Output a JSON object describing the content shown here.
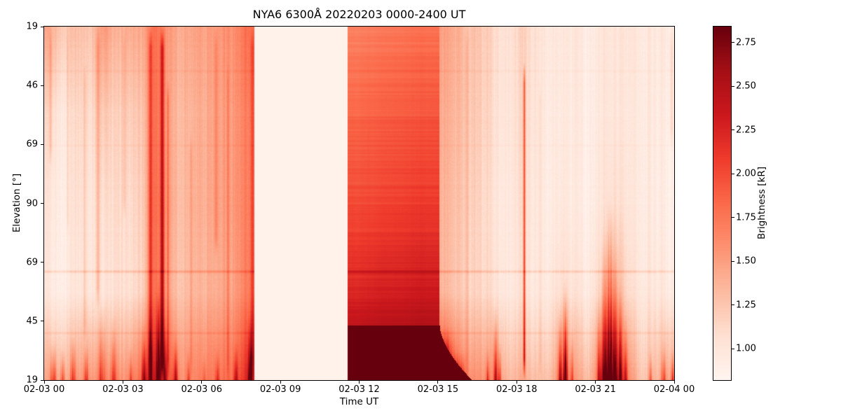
{
  "figure": {
    "background": "#ffffff"
  },
  "chart_data": {
    "type": "heatmap",
    "title": "NYA6 6300Å 20220203 0000-2400 UT",
    "xlabel": "Time UT",
    "ylabel": "Elevation [°]",
    "x_ticks": [
      "02-03 00",
      "02-03 03",
      "02-03 06",
      "02-03 09",
      "02-03 12",
      "02-03 15",
      "02-03 18",
      "02-03 21",
      "02-04 00"
    ],
    "x_range_hours": [
      0,
      24
    ],
    "y_ticks": [
      "19",
      "46",
      "69",
      "90",
      "69",
      "45",
      "19"
    ],
    "grid": false,
    "colorbar": {
      "label": "Brightness [kR]",
      "ticks": [
        "1.00",
        "1.25",
        "1.50",
        "1.75",
        "2.00",
        "2.25",
        "2.50",
        "2.75"
      ],
      "tick_values": [
        1.0,
        1.25,
        1.5,
        1.75,
        2.0,
        2.25,
        2.5,
        2.75
      ],
      "vmin": 0.82,
      "vmax": 2.84,
      "colormap": "Reds",
      "cmap_stops": [
        [
          0,
          [
            255,
            245,
            240
          ]
        ],
        [
          0.125,
          [
            254,
            224,
            210
          ]
        ],
        [
          0.25,
          [
            252,
            187,
            161
          ]
        ],
        [
          0.375,
          [
            252,
            146,
            114
          ]
        ],
        [
          0.5,
          [
            251,
            106,
            74
          ]
        ],
        [
          0.625,
          [
            239,
            59,
            44
          ]
        ],
        [
          0.75,
          [
            203,
            24,
            29
          ]
        ],
        [
          0.875,
          [
            165,
            15,
            21
          ]
        ],
        [
          1,
          [
            103,
            0,
            13
          ]
        ]
      ]
    },
    "segments": {
      "gap": {
        "t0": 8.0,
        "t1": 11.56,
        "value": 0.86
      },
      "block": {
        "t0": 11.56,
        "t1": 15.07,
        "sat_yfrac": 0.845,
        "sat_value": 2.9
      },
      "wedge": {
        "t1": 16.3,
        "y0": 0.845,
        "power": 0.6,
        "value": 2.9
      }
    },
    "profiles": {
      "hours_per_col": 0.5,
      "anchors": [
        0,
        0.25,
        0.5,
        0.75,
        1
      ],
      "values": [
        [
          1.45,
          1.12,
          1.02,
          0.98,
          1.45
        ],
        [
          1.25,
          1.0,
          0.95,
          0.95,
          1.4
        ],
        [
          1.3,
          1.12,
          1.06,
          1.0,
          1.5
        ],
        [
          1.25,
          1.08,
          1.0,
          1.0,
          1.55
        ],
        [
          1.6,
          1.28,
          1.12,
          1.05,
          1.55
        ],
        [
          1.3,
          1.1,
          1.05,
          1.0,
          1.5
        ],
        [
          1.45,
          1.22,
          1.12,
          1.08,
          1.6
        ],
        [
          1.5,
          1.32,
          1.26,
          1.22,
          1.9
        ],
        [
          1.75,
          1.75,
          1.78,
          1.75,
          2.25
        ],
        [
          1.55,
          1.45,
          1.48,
          1.42,
          1.95
        ],
        [
          1.45,
          1.35,
          1.33,
          1.28,
          1.6
        ],
        [
          1.48,
          1.38,
          1.38,
          1.33,
          1.65
        ],
        [
          1.5,
          1.43,
          1.43,
          1.38,
          1.72
        ],
        [
          1.54,
          1.47,
          1.47,
          1.42,
          1.76
        ],
        [
          1.58,
          1.52,
          1.52,
          1.47,
          1.82
        ],
        [
          1.78,
          1.68,
          1.68,
          1.68,
          2.2
        ],
        [
          0.86,
          0.86,
          0.86,
          0.86,
          0.86
        ],
        [
          0.86,
          0.86,
          0.86,
          0.86,
          0.86
        ],
        [
          0.86,
          0.86,
          0.86,
          0.86,
          0.86
        ],
        [
          0.86,
          0.86,
          0.86,
          0.86,
          0.86
        ],
        [
          0.86,
          0.86,
          0.86,
          0.86,
          0.86
        ],
        [
          0.86,
          0.86,
          0.86,
          0.86,
          0.86
        ],
        [
          0.86,
          0.86,
          0.86,
          0.86,
          0.86
        ],
        [
          1.68,
          1.84,
          2.0,
          2.22,
          2.7
        ],
        [
          1.7,
          1.86,
          2.01,
          2.24,
          2.72
        ],
        [
          1.72,
          1.88,
          2.03,
          2.27,
          2.74
        ],
        [
          1.74,
          1.9,
          2.05,
          2.28,
          2.75
        ],
        [
          1.76,
          1.92,
          2.07,
          2.3,
          2.76
        ],
        [
          1.78,
          1.93,
          2.09,
          2.32,
          2.78
        ],
        [
          1.78,
          1.94,
          2.09,
          2.32,
          2.78
        ],
        [
          1.52,
          1.45,
          1.4,
          1.38,
          2.1
        ],
        [
          1.42,
          1.36,
          1.3,
          1.26,
          1.8
        ],
        [
          1.3,
          1.25,
          1.2,
          1.16,
          1.6
        ],
        [
          1.2,
          1.15,
          1.1,
          1.1,
          1.55
        ],
        [
          1.14,
          1.09,
          1.05,
          1.08,
          1.6
        ],
        [
          1.08,
          1.04,
          1.0,
          1.0,
          1.35
        ],
        [
          1.16,
          1.12,
          1.08,
          1.04,
          1.4
        ],
        [
          1.04,
          1.0,
          0.96,
          0.95,
          1.28
        ],
        [
          1.0,
          0.97,
          0.95,
          0.99,
          1.32
        ],
        [
          1.0,
          0.97,
          0.99,
          1.1,
          1.7
        ],
        [
          1.0,
          0.97,
          0.95,
          1.03,
          1.5
        ],
        [
          0.97,
          0.95,
          0.94,
          0.99,
          1.35
        ],
        [
          1.02,
          1.0,
          1.03,
          1.2,
          1.9
        ],
        [
          1.05,
          1.04,
          1.12,
          1.45,
          2.2
        ],
        [
          1.0,
          0.97,
          0.99,
          1.08,
          1.6
        ],
        [
          0.95,
          0.93,
          0.92,
          0.95,
          1.22
        ],
        [
          0.95,
          0.93,
          0.92,
          0.97,
          1.32
        ],
        [
          1.0,
          0.96,
          0.95,
          1.0,
          1.5
        ]
      ]
    },
    "streaks": [
      [
        0.25,
        0.04,
        0.3,
        0.0,
        0.4
      ],
      [
        0.9,
        0.03,
        0.2,
        0.0,
        0.6
      ],
      [
        1.55,
        0.04,
        0.22,
        0.1,
        0.9
      ],
      [
        2.05,
        0.06,
        0.35,
        0.0,
        0.8
      ],
      [
        3.05,
        0.04,
        0.22,
        0.0,
        0.55
      ],
      [
        4.05,
        0.05,
        0.7,
        0.0,
        1.0
      ],
      [
        4.5,
        0.05,
        1.1,
        0.0,
        1.0
      ],
      [
        4.72,
        0.035,
        0.45,
        0.15,
        1.0
      ],
      [
        5.6,
        0.04,
        0.2,
        0.3,
        1.0
      ],
      [
        6.55,
        0.045,
        0.3,
        0.0,
        0.65
      ],
      [
        7.0,
        0.03,
        0.22,
        0.1,
        1.0
      ],
      [
        7.93,
        0.05,
        0.45,
        0.0,
        1.0
      ],
      [
        16.1,
        0.05,
        0.2,
        0.0,
        1.0
      ],
      [
        18.29,
        0.028,
        1.15,
        0.1,
        1.0
      ],
      [
        18.9,
        0.03,
        0.18,
        0.15,
        1.0
      ],
      [
        23.9,
        0.05,
        0.3,
        0.0,
        0.35
      ]
    ],
    "flames": [
      [
        0.35,
        0.08,
        0.8,
        0.12
      ],
      [
        0.7,
        0.06,
        0.6,
        0.1
      ],
      [
        1.1,
        0.07,
        0.7,
        0.14
      ],
      [
        1.6,
        0.06,
        0.7,
        0.12
      ],
      [
        2.2,
        0.1,
        0.7,
        0.25
      ],
      [
        2.65,
        0.08,
        0.6,
        0.2
      ],
      [
        3.3,
        0.05,
        0.5,
        0.1
      ],
      [
        3.8,
        0.06,
        0.9,
        0.18
      ],
      [
        4.05,
        0.05,
        1.1,
        0.22
      ],
      [
        4.35,
        0.06,
        1.2,
        0.3
      ],
      [
        4.6,
        0.05,
        0.9,
        0.2
      ],
      [
        5.0,
        0.06,
        0.8,
        0.15
      ],
      [
        5.5,
        0.05,
        0.5,
        0.1
      ],
      [
        6.1,
        0.04,
        0.4,
        0.08
      ],
      [
        6.6,
        0.05,
        0.6,
        0.1
      ],
      [
        7.3,
        0.06,
        0.7,
        0.12
      ],
      [
        7.85,
        0.06,
        1.0,
        0.2
      ],
      [
        15.25,
        0.22,
        1.6,
        0.16
      ],
      [
        15.8,
        0.18,
        0.9,
        0.09
      ],
      [
        16.9,
        0.05,
        0.6,
        0.1
      ],
      [
        17.2,
        0.06,
        0.9,
        0.22
      ],
      [
        17.35,
        0.04,
        0.7,
        0.12
      ],
      [
        19.65,
        0.05,
        1.1,
        0.22
      ],
      [
        19.85,
        0.06,
        1.4,
        0.3
      ],
      [
        20.1,
        0.04,
        0.8,
        0.15
      ],
      [
        21.15,
        0.05,
        1.0,
        0.25
      ],
      [
        21.35,
        0.06,
        1.3,
        0.45
      ],
      [
        21.55,
        0.07,
        1.5,
        0.55
      ],
      [
        21.75,
        0.06,
        1.4,
        0.4
      ],
      [
        21.95,
        0.05,
        1.1,
        0.3
      ],
      [
        22.15,
        0.05,
        0.8,
        0.2
      ],
      [
        23.1,
        0.05,
        0.5,
        0.1
      ],
      [
        23.6,
        0.06,
        0.7,
        0.12
      ],
      [
        23.95,
        0.05,
        0.8,
        0.1
      ]
    ],
    "hlines": [
      [
        0.692,
        0.22
      ],
      [
        0.866,
        0.1
      ],
      [
        0.125,
        0.05
      ],
      [
        0.335,
        0.04
      ]
    ],
    "noise": {
      "seed": 42,
      "column": 0.05,
      "pixel": 0.03,
      "row": 0.012,
      "block_row": 0.06
    }
  }
}
